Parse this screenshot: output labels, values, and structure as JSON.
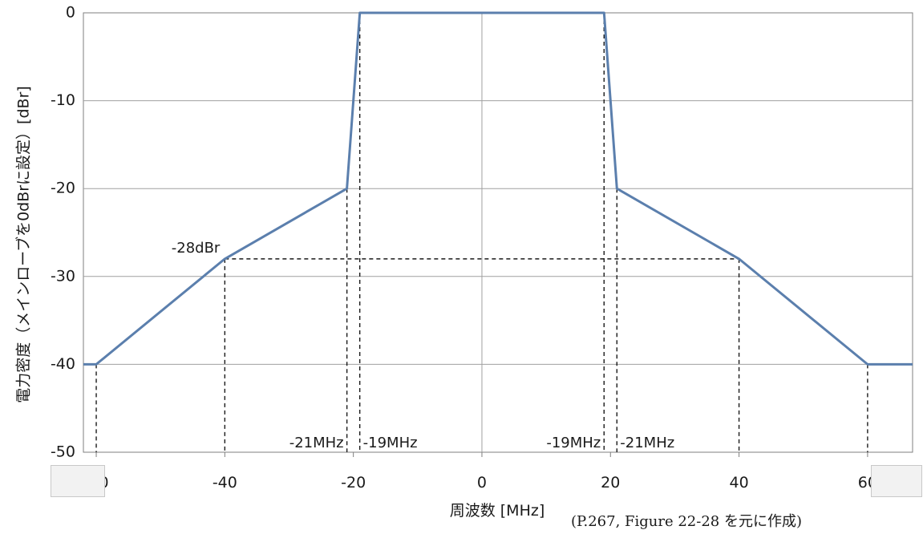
{
  "chart_data": {
    "type": "line",
    "xlabel": "周波数 [MHz]",
    "ylabel": "電力密度（メインローブを0dBrに設定）[dBr]",
    "xlim": [
      -62,
      67
    ],
    "ylim": [
      -50,
      0
    ],
    "x_ticks": [
      -60,
      -40,
      -20,
      0,
      20,
      40,
      60
    ],
    "x_tick_labels": [
      "-60",
      "-40",
      "-20",
      "0",
      "20",
      "40",
      "60"
    ],
    "y_ticks": [
      0,
      -10,
      -20,
      -30,
      -40,
      -50
    ],
    "y_tick_labels": [
      "0",
      "-10",
      "-20",
      "-30",
      "-40",
      "-50"
    ],
    "grid": true,
    "series": [
      {
        "color": "#5b7fad",
        "x": [
          -62,
          -60,
          -40,
          -21,
          -19,
          19,
          21,
          40,
          60,
          67
        ],
        "y": [
          -40,
          -40,
          -28,
          -20,
          0,
          0,
          -20,
          -28,
          -40,
          -40
        ]
      }
    ],
    "annotations": {
      "level_label": "-28dBr",
      "level_value": -28,
      "freq_labels": [
        "-21MHz",
        "-19MHz",
        "-19MHz",
        "-21MHz"
      ],
      "dashed_verticals": [
        -60,
        -40,
        -21,
        -19,
        19,
        21,
        40,
        60
      ]
    }
  },
  "source_note": "(P.267, Figure 22-28 を元に作成)"
}
